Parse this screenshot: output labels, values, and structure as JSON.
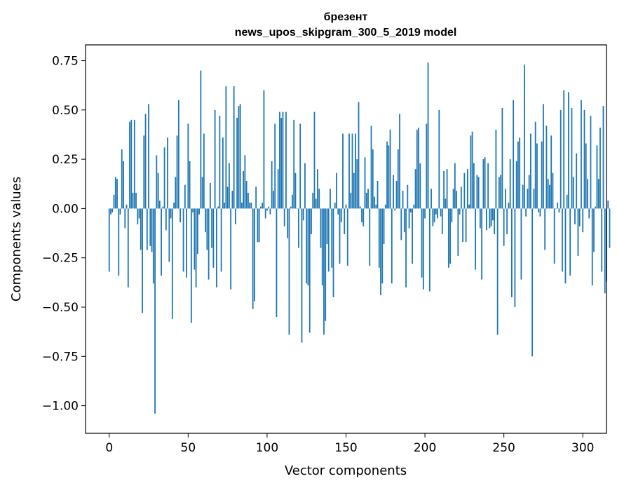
{
  "chart_data": {
    "type": "bar",
    "title": "брезент",
    "subtitle": "news_upos_skipgram_300_5_2019 model",
    "xlabel": "Vector components",
    "ylabel": "Components values",
    "xlim": [
      -15,
      315
    ],
    "ylim": [
      -1.14,
      0.83
    ],
    "xticks": [
      0,
      50,
      100,
      150,
      200,
      250,
      300
    ],
    "xtick_labels": [
      "0",
      "50",
      "100",
      "150",
      "200",
      "250",
      "300"
    ],
    "yticks": [
      -1.0,
      -0.75,
      -0.5,
      -0.25,
      0.0,
      0.25,
      0.5,
      0.75
    ],
    "ytick_labels": [
      "−1.00",
      "−0.75",
      "−0.50",
      "−0.25",
      "0.00",
      "0.25",
      "0.50",
      "0.75"
    ],
    "grid": false,
    "bar_color": "#1f77b4",
    "values": [
      -0.32,
      -0.03,
      -0.02,
      0.07,
      0.16,
      0.15,
      -0.34,
      -0.03,
      0.3,
      0.24,
      -0.1,
      0.02,
      -0.4,
      0.44,
      0.45,
      0.08,
      0.45,
      0.08,
      -0.08,
      -0.05,
      -0.21,
      -0.53,
      0.37,
      0.48,
      -0.21,
      0.53,
      -0.19,
      -0.22,
      -0.38,
      -1.04,
      0.27,
      0.18,
      0.04,
      -0.34,
      0.01,
      0.31,
      -0.11,
      0.36,
      -0.27,
      -0.05,
      -0.56,
      0.03,
      0.16,
      0.37,
      0.55,
      -0.07,
      0.0,
      -0.32,
      0.12,
      -0.35,
      0.43,
      0.24,
      -0.58,
      -0.02,
      -0.31,
      -0.4,
      -0.23,
      -0.03,
      0.7,
      0.16,
      0.38,
      -0.12,
      -0.21,
      -0.36,
      0.13,
      -0.2,
      -0.3,
      0.5,
      -0.4,
      0.01,
      0.47,
      -0.32,
      0.36,
      0.03,
      0.62,
      0.11,
      0.23,
      -0.41,
      0.09,
      0.62,
      -0.08,
      0.46,
      0.52,
      0.53,
      0.03,
      0.19,
      0.27,
      0.14,
      0.08,
      0.03,
      0.03,
      -0.51,
      -0.47,
      0.11,
      -0.17,
      -0.17,
      0.01,
      0.03,
      0.6,
      -0.05,
      -0.01,
      0.01,
      -0.03,
      0.24,
      0.09,
      0.43,
      -0.55,
      0.2,
      0.49,
      0.46,
      0.49,
      -0.09,
      0.49,
      -0.15,
      -0.64,
      0.01,
      0.07,
      0.45,
      0.18,
      0.0,
      -0.2,
      0.43,
      -0.68,
      -0.06,
      0.23,
      -0.38,
      -0.39,
      -0.63,
      -0.13,
      0.08,
      0.49,
      0.05,
      0.2,
      0.1,
      -0.2,
      -0.39,
      -0.64,
      -0.57,
      -0.18,
      -0.32,
      0.1,
      -0.3,
      -0.45,
      0.03,
      0.18,
      -0.03,
      -0.28,
      -0.07,
      0.38,
      -0.13,
      0.02,
      -0.29,
      0.38,
      0.08,
      0.38,
      0.18,
      0.38,
      0.25,
      0.54,
      0.01,
      -0.07,
      -0.09,
      0.26,
      0.08,
      0.1,
      -0.29,
      0.42,
      0.3,
      0.06,
      0.02,
      0.14,
      -0.3,
      -0.44,
      -0.38,
      -0.18,
      0.02,
      0.34,
      0.32,
      0.4,
      -0.38,
      0.17,
      -0.01,
      0.14,
      0.3,
      0.48,
      -0.16,
      0.09,
      -0.12,
      -0.4,
      0.12,
      -0.1,
      -0.02,
      -0.28,
      0.02,
      0.2,
      0.4,
      0.41,
      0.23,
      -0.35,
      -0.41,
      -0.05,
      0.43,
      0.74,
      -0.42,
      0.1,
      -0.09,
      -0.07,
      -0.03,
      -0.05,
      0.5,
      -0.04,
      -0.13,
      0.19,
      0.05,
      0.2,
      -0.3,
      -0.28,
      -0.07,
      0.1,
      0.23,
      0.09,
      -0.24,
      -0.03,
      0.11,
      -0.17,
      0.18,
      -0.17,
      0.2,
      0.02,
      0.37,
      0.39,
      0.23,
      -0.31,
      0.17,
      0.16,
      -0.1,
      -0.36,
      0.25,
      0.26,
      -0.11,
      0.23,
      -0.1,
      -0.09,
      -0.06,
      -0.13,
      0.4,
      -0.64,
      0.16,
      0.17,
      0.51,
      -0.19,
      0.1,
      -0.13,
      0.03,
      0.25,
      -0.45,
      0.55,
      -0.5,
      0.24,
      0.34,
      0.36,
      -0.36,
      0.12,
      0.73,
      -0.04,
      0.1,
      0.17,
      0.38,
      -0.75,
      0.1,
      0.44,
      0.33,
      -0.02,
      -0.04,
      0.34,
      0.53,
      -0.21,
      0.42,
      0.15,
      0.12,
      0.37,
      0.18,
      -0.28,
      0.0,
      0.03,
      -0.02,
      0.5,
      -0.32,
      0.6,
      -0.38,
      0.07,
      0.59,
      -0.34,
      0.51,
      0.16,
      -0.08,
      0.28,
      -0.24,
      -0.09,
      0.55,
      -0.12,
      0.5,
      0.33,
      0.15,
      -0.05,
      0.47,
      -0.39,
      -0.22,
      0.01,
      0.32,
      0.15,
      0.41,
      -0.32,
      0.52,
      -0.43,
      -0.37,
      0.04,
      -0.2
    ]
  }
}
